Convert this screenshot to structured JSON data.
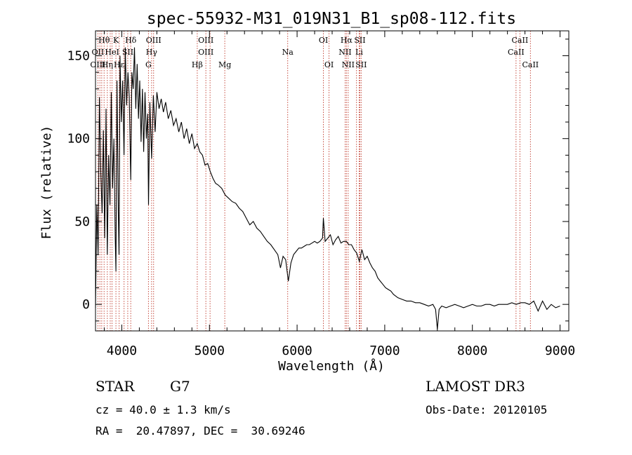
{
  "chart_data": {
    "type": "line",
    "title": "spec-55932-M31_019N31_B1_sp08-112.fits",
    "xlabel": "Wavelength (Å)",
    "ylabel": "Flux (relative)",
    "xlim": [
      3700,
      9100
    ],
    "ylim": [
      -16,
      165
    ],
    "xticks": [
      {
        "value": 4000,
        "label": "4000"
      },
      {
        "value": 5000,
        "label": "5000"
      },
      {
        "value": 6000,
        "label": "6000"
      },
      {
        "value": 7000,
        "label": "7000"
      },
      {
        "value": 8000,
        "label": "8000"
      },
      {
        "value": 9000,
        "label": "9000"
      }
    ],
    "yticks": [
      {
        "value": 0,
        "label": "0"
      },
      {
        "value": 50,
        "label": "50"
      },
      {
        "value": 100,
        "label": "100"
      },
      {
        "value": 150,
        "label": "150"
      }
    ],
    "series": [
      {
        "name": "spectrum",
        "x": [
          3700,
          3715,
          3730,
          3745,
          3760,
          3775,
          3790,
          3805,
          3820,
          3835,
          3850,
          3865,
          3880,
          3895,
          3910,
          3925,
          3933,
          3945,
          3960,
          3968,
          3980,
          3995,
          4010,
          4025,
          4040,
          4055,
          4070,
          4085,
          4102,
          4115,
          4130,
          4145,
          4160,
          4175,
          4190,
          4205,
          4220,
          4235,
          4250,
          4265,
          4280,
          4295,
          4305,
          4320,
          4340,
          4360,
          4380,
          4400,
          4425,
          4450,
          4475,
          4500,
          4530,
          4560,
          4590,
          4620,
          4650,
          4680,
          4710,
          4740,
          4770,
          4800,
          4830,
          4861,
          4890,
          4920,
          4950,
          4980,
          5010,
          5040,
          5070,
          5100,
          5140,
          5180,
          5220,
          5260,
          5300,
          5340,
          5380,
          5420,
          5460,
          5500,
          5540,
          5580,
          5620,
          5660,
          5700,
          5740,
          5780,
          5810,
          5840,
          5870,
          5900,
          5930,
          5960,
          5990,
          6020,
          6050,
          6080,
          6110,
          6140,
          6170,
          6200,
          6230,
          6260,
          6290,
          6300,
          6320,
          6350,
          6380,
          6410,
          6440,
          6470,
          6500,
          6530,
          6563,
          6590,
          6620,
          6650,
          6680,
          6710,
          6740,
          6770,
          6800,
          6830,
          6860,
          6890,
          6920,
          6950,
          6980,
          7010,
          7040,
          7070,
          7100,
          7150,
          7200,
          7250,
          7300,
          7350,
          7400,
          7450,
          7500,
          7550,
          7580,
          7600,
          7620,
          7650,
          7700,
          7750,
          7800,
          7850,
          7900,
          7950,
          8000,
          8050,
          8100,
          8150,
          8200,
          8250,
          8300,
          8350,
          8400,
          8450,
          8500,
          8550,
          8600,
          8650,
          8700,
          8750,
          8800,
          8850,
          8900,
          8950,
          9000
        ],
        "y": [
          -2,
          60,
          30,
          125,
          80,
          55,
          105,
          40,
          118,
          30,
          90,
          60,
          128,
          70,
          100,
          40,
          20,
          135,
          55,
          30,
          150,
          110,
          135,
          90,
          155,
          120,
          140,
          125,
          75,
          140,
          130,
          155,
          118,
          145,
          112,
          135,
          98,
          130,
          92,
          128,
          100,
          115,
          60,
          122,
          88,
          126,
          104,
          128,
          118,
          124,
          116,
          122,
          112,
          117,
          108,
          112,
          104,
          110,
          100,
          106,
          97,
          103,
          94,
          97,
          92,
          90,
          84,
          85,
          80,
          76,
          73,
          72,
          70,
          66,
          64,
          62,
          61,
          58,
          56,
          52,
          48,
          50,
          46,
          44,
          41,
          38,
          36,
          33,
          30,
          22,
          29,
          27,
          14,
          25,
          30,
          32,
          34,
          34,
          35,
          36,
          36,
          37,
          38,
          37,
          38,
          40,
          52,
          38,
          40,
          42,
          36,
          39,
          41,
          37,
          38,
          38,
          36,
          36,
          33,
          31,
          26,
          33,
          27,
          29,
          25,
          22,
          20,
          16,
          14,
          12,
          10,
          9,
          8,
          6,
          4,
          3,
          2,
          2,
          1,
          1,
          0,
          -1,
          0,
          -3,
          -15,
          -3,
          -1,
          -2,
          -1,
          0,
          -1,
          -2,
          -1,
          0,
          -1,
          -1,
          0,
          0,
          -1,
          0,
          0,
          0,
          1,
          0,
          1,
          1,
          0,
          2,
          -4,
          2,
          -3,
          0,
          -2,
          -1
        ]
      }
    ],
    "line_markers": [
      {
        "label": "Hθ",
        "wavelength": 3798,
        "row": 0
      },
      {
        "label": "K",
        "wavelength": 3933,
        "row": 0
      },
      {
        "label": "Hδ",
        "wavelength": 4102,
        "row": 0
      },
      {
        "label": "OIII",
        "wavelength": 4363,
        "row": 0
      },
      {
        "label": "OIII",
        "wavelength": 4959,
        "row": 0
      },
      {
        "label": "OI",
        "wavelength": 6300,
        "row": 0
      },
      {
        "label": "Hα",
        "wavelength": 6563,
        "row": 0
      },
      {
        "label": "SII",
        "wavelength": 6716,
        "row": 0
      },
      {
        "label": "CaII",
        "wavelength": 8542,
        "row": 0
      },
      {
        "label": "OII",
        "wavelength": 3727,
        "row": 1
      },
      {
        "label": "HeI",
        "wavelength": 3889,
        "row": 1
      },
      {
        "label": "SII",
        "wavelength": 4068,
        "row": 1
      },
      {
        "label": "Hγ",
        "wavelength": 4340,
        "row": 1
      },
      {
        "label": "OIII",
        "wavelength": 4959,
        "row": 1
      },
      {
        "label": "Na",
        "wavelength": 5893,
        "row": 1
      },
      {
        "label": "NII",
        "wavelength": 6548,
        "row": 1
      },
      {
        "label": "Li",
        "wavelength": 6708,
        "row": 1
      },
      {
        "label": "CaII",
        "wavelength": 8498,
        "row": 1
      },
      {
        "label": "OIII",
        "wavelength": 3727,
        "row": 2
      },
      {
        "label": "Hη",
        "wavelength": 3835,
        "row": 2
      },
      {
        "label": "Hε",
        "wavelength": 3970,
        "row": 2
      },
      {
        "label": "G",
        "wavelength": 4304,
        "row": 2
      },
      {
        "label": "Hβ",
        "wavelength": 4861,
        "row": 2
      },
      {
        "label": "Mg",
        "wavelength": 5175,
        "row": 2
      },
      {
        "label": "OI",
        "wavelength": 6364,
        "row": 2
      },
      {
        "label": "NII",
        "wavelength": 6583,
        "row": 2
      },
      {
        "label": "SII",
        "wavelength": 6731,
        "row": 2
      },
      {
        "label": "CaII",
        "wavelength": 8662,
        "row": 2
      }
    ],
    "extra_marker_lines": [
      3750,
      3771,
      3868,
      3889,
      4026,
      5007,
      6678
    ]
  },
  "info": {
    "object_class": "STAR",
    "subclass": "G7",
    "survey": "LAMOST DR3",
    "redshift": "cz = 40.0 ± 1.3 km/s",
    "obs_date": "Obs-Date: 20120105",
    "coordinates": "RA =  20.47897, DEC =  30.69246"
  }
}
